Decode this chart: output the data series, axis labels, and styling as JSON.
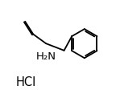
{
  "background_color": "#ffffff",
  "line_color": "#000000",
  "line_width": 1.3,
  "hcl_text": "HCl",
  "nh2_text": "H₂N",
  "hcl_fontsize": 10.5,
  "nh2_fontsize": 9.5,
  "fig_width": 1.49,
  "fig_height": 1.17,
  "dpi": 100,
  "xlim": [
    0,
    10
  ],
  "ylim": [
    1.5,
    9.5
  ]
}
